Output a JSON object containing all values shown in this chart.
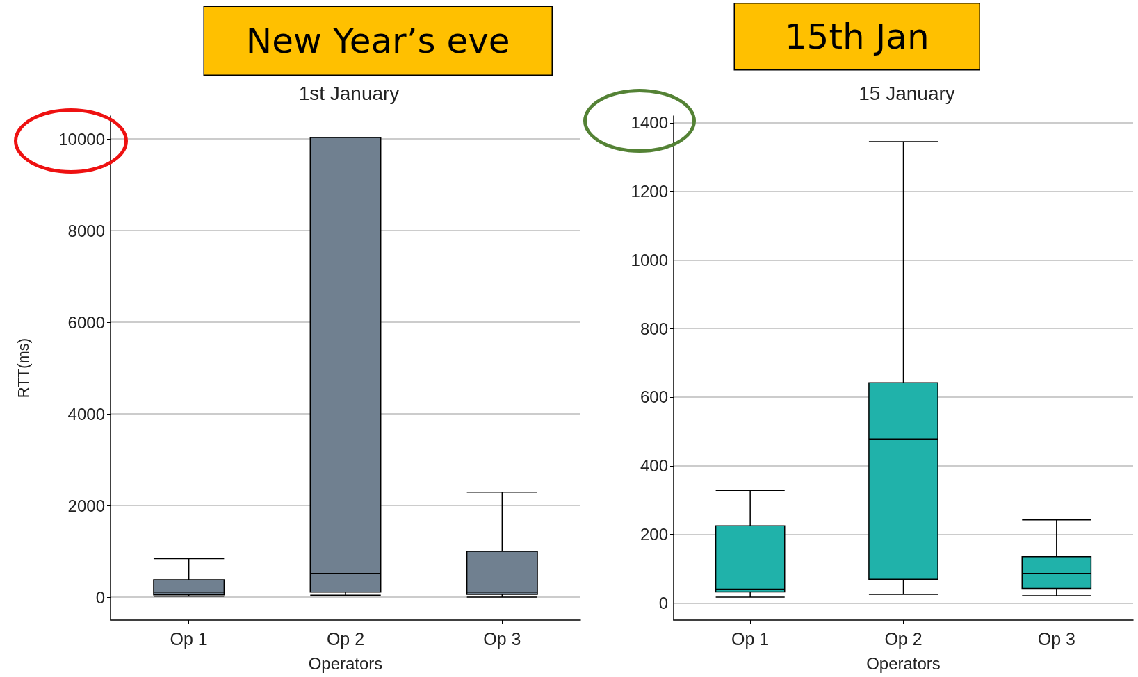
{
  "chart_data": [
    {
      "type": "box",
      "title": "1st January",
      "xlabel": "Operators",
      "ylabel": "RTT(ms)",
      "annotations": [
        "New Year’s eve"
      ],
      "categories": [
        "Op 1",
        "Op 2",
        "Op 3"
      ],
      "color": "#708090",
      "boxes": [
        {
          "low": 20,
          "q1": 50,
          "median": 110,
          "q3": 380,
          "high": 840
        },
        {
          "low": 42,
          "q1": 110,
          "median": 520,
          "q3": 10030,
          "high": 10030
        },
        {
          "low": 0,
          "q1": 60,
          "median": 110,
          "q3": 1000,
          "high": 2290
        }
      ],
      "ylim": [
        -500,
        10500
      ],
      "yticks": [
        0,
        2000,
        4000,
        6000,
        8000,
        10000
      ],
      "grid": "y"
    },
    {
      "type": "box",
      "title": "15 January",
      "xlabel": "Operators",
      "annotations": [
        "15th Jan"
      ],
      "categories": [
        "Op 1",
        "Op 2",
        "Op 3"
      ],
      "color": "#20b2aa",
      "boxes": [
        {
          "low": 17,
          "q1": 32,
          "median": 40,
          "q3": 225,
          "high": 328
        },
        {
          "low": 25,
          "q1": 69,
          "median": 478,
          "q3": 642,
          "high": 1345
        },
        {
          "low": 21,
          "q1": 42,
          "median": 86,
          "q3": 135,
          "high": 242
        }
      ],
      "ylim": [
        -50,
        1420
      ],
      "yticks": [
        0,
        200,
        400,
        600,
        800,
        1000,
        1200,
        1400
      ],
      "grid": "y"
    }
  ]
}
